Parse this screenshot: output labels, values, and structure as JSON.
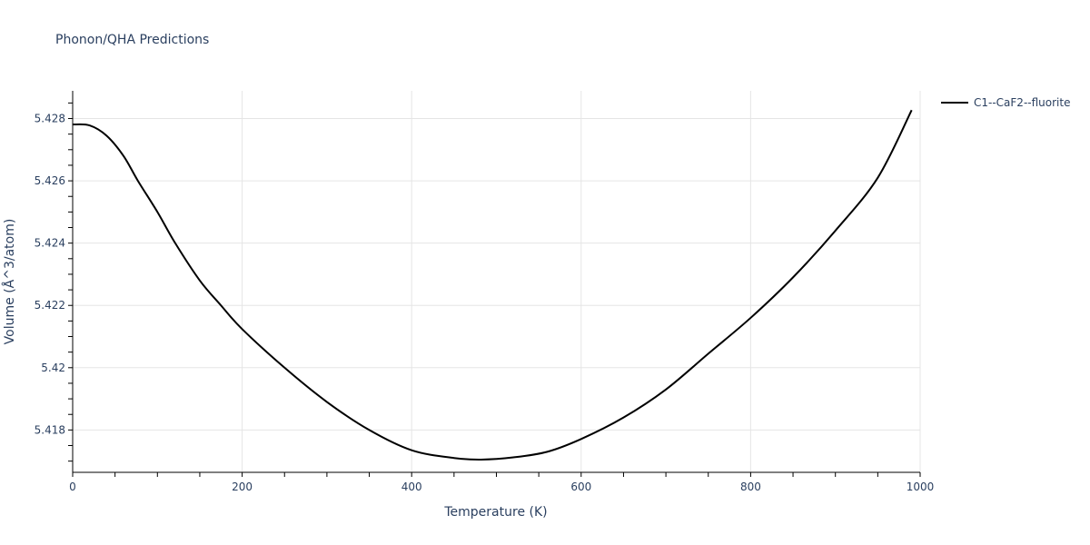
{
  "title": "Phonon/QHA Predictions",
  "chart_data": {
    "type": "line",
    "title": "Phonon/QHA Predictions",
    "xlabel": "Temperature (K)",
    "ylabel": "Volume (Å^3/atom)",
    "xlim": [
      0,
      1000
    ],
    "ylim": [
      5.41664,
      5.42889
    ],
    "x_ticks": [
      0,
      200,
      400,
      600,
      800,
      1000
    ],
    "x_tick_labels": [
      "0",
      "200",
      "400",
      "600",
      "800",
      "1000"
    ],
    "y_ticks": [
      5.418,
      5.42,
      5.422,
      5.424,
      5.426,
      5.428
    ],
    "y_tick_labels": [
      "5.418",
      "5.42",
      "5.422",
      "5.424",
      "5.426",
      "5.428"
    ],
    "grid": true,
    "legend_position": "top-right outside",
    "series": [
      {
        "name": "C1--CaF2--fluorite",
        "color": "#000000",
        "x": [
          0,
          20,
          40,
          60,
          77,
          100,
          121,
          150,
          175,
          200,
          250,
          300,
          350,
          400,
          450,
          482,
          520,
          560,
          600,
          650,
          700,
          750,
          800,
          850,
          900,
          950,
          990
        ],
        "y": [
          5.42781,
          5.42778,
          5.42745,
          5.4268,
          5.426,
          5.425,
          5.424,
          5.4228,
          5.422,
          5.42124,
          5.42,
          5.4189,
          5.418,
          5.41735,
          5.4171,
          5.41705,
          5.41712,
          5.4173,
          5.41771,
          5.4184,
          5.4193,
          5.42045,
          5.4216,
          5.4229,
          5.4244,
          5.4261,
          5.42827
        ]
      }
    ]
  },
  "legend": {
    "items": [
      {
        "label": "C1--CaF2--fluorite",
        "color": "#000000"
      }
    ]
  },
  "colors": {
    "grid": "#e5e5e5",
    "axis": "#000000",
    "text": "#2a3f5f",
    "line": "#000000"
  }
}
